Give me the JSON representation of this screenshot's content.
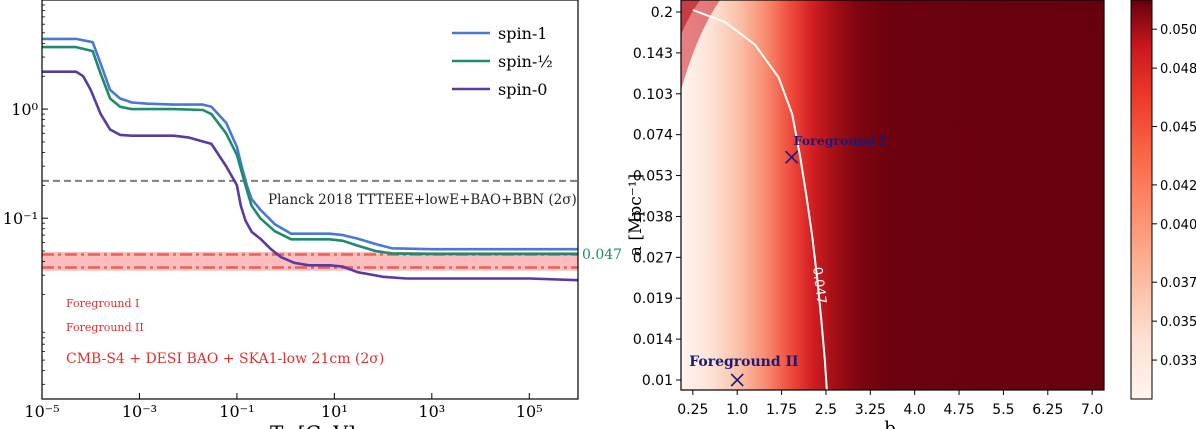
{
  "chart_data": [
    {
      "type": "line",
      "xscale": "log",
      "yscale": "log",
      "xlim": [
        1e-05,
        1000000.0
      ],
      "ylim": [
        0.0022,
        10
      ],
      "xticks": [
        {
          "v": 1e-05,
          "label": "10⁻⁵"
        },
        {
          "v": 0.001,
          "label": "10⁻³"
        },
        {
          "v": 0.1,
          "label": "10⁻¹"
        },
        {
          "v": 10.0,
          "label": "10¹"
        },
        {
          "v": 1000.0,
          "label": "10³"
        },
        {
          "v": 100000.0,
          "label": "10⁵"
        }
      ],
      "yticks": [
        {
          "v": 1,
          "label": "10⁰"
        },
        {
          "v": 0.1,
          "label": "10⁻¹"
        }
      ],
      "xlabel_partial": "T₀ [GeV]",
      "series": [
        {
          "name": "spin-1",
          "color": "#4a78d6",
          "x": [
            1e-05,
            5e-05,
            0.00011,
            0.00016,
            0.00025,
            0.0004,
            0.0007,
            0.0015,
            0.005,
            0.02,
            0.03,
            0.06,
            0.1,
            0.13,
            0.16,
            0.2,
            0.3,
            0.6,
            1.3,
            3,
            8,
            15,
            30,
            70,
            150,
            1000.0,
            10000.0,
            1000000.0
          ],
          "y": [
            4.4,
            4.4,
            4.1,
            2.6,
            1.5,
            1.25,
            1.15,
            1.12,
            1.1,
            1.1,
            1.05,
            0.75,
            0.45,
            0.28,
            0.2,
            0.15,
            0.12,
            0.088,
            0.072,
            0.072,
            0.072,
            0.07,
            0.065,
            0.058,
            0.053,
            0.052,
            0.052,
            0.052
          ]
        },
        {
          "name": "spin-1/2",
          "color": "#1e8a6e",
          "x": [
            1e-05,
            5e-05,
            0.00011,
            0.00016,
            0.00025,
            0.0004,
            0.0007,
            0.0015,
            0.005,
            0.02,
            0.03,
            0.06,
            0.1,
            0.13,
            0.16,
            0.2,
            0.3,
            0.6,
            1.3,
            3,
            8,
            15,
            30,
            70,
            150,
            1000.0,
            10000.0,
            1000000.0
          ],
          "y": [
            3.7,
            3.7,
            3.4,
            2.1,
            1.25,
            1.05,
            1.0,
            1.0,
            1.0,
            0.98,
            0.9,
            0.6,
            0.38,
            0.25,
            0.18,
            0.13,
            0.1,
            0.076,
            0.064,
            0.064,
            0.064,
            0.062,
            0.056,
            0.05,
            0.0475,
            0.047,
            0.047,
            0.047
          ]
        },
        {
          "name": "spin-0",
          "color": "#5b3aa3",
          "x": [
            1e-05,
            3e-05,
            5e-05,
            7e-05,
            0.0001,
            0.00016,
            0.00025,
            0.0004,
            0.0007,
            0.0015,
            0.005,
            0.01,
            0.03,
            0.06,
            0.1,
            0.12,
            0.15,
            0.2,
            0.3,
            0.5,
            0.8,
            1.5,
            3,
            8,
            15,
            30,
            100,
            300,
            1000.0,
            10000.0,
            100000.0,
            1000000.0
          ],
          "y": [
            2.2,
            2.2,
            2.2,
            2.0,
            1.5,
            0.9,
            0.65,
            0.58,
            0.57,
            0.57,
            0.57,
            0.55,
            0.48,
            0.3,
            0.2,
            0.13,
            0.095,
            0.075,
            0.065,
            0.052,
            0.044,
            0.039,
            0.037,
            0.037,
            0.036,
            0.032,
            0.029,
            0.028,
            0.028,
            0.028,
            0.028,
            0.027
          ]
        }
      ],
      "legend": {
        "placement": "top-right",
        "labels": [
          "spin-1",
          "spin-½",
          "spin-0"
        ]
      },
      "hlines": [
        {
          "label": "Planck 2018 TTTEEE+lowE+BAO+BBN (2σ)",
          "y": 0.22,
          "style": "dashed",
          "color": "#7f7f7f"
        }
      ],
      "band": {
        "label": "CMB-S4 + DESI BAO + SKA1-low 21cm (2σ)",
        "ymin": 0.033,
        "ymax": 0.049,
        "color": "#f8b0b0"
      },
      "foreground_lines": [
        {
          "label": "Foreground I",
          "y": 0.0465
        },
        {
          "label": "Foreground II",
          "y": 0.0353
        }
      ],
      "annotation": {
        "text": "0.047",
        "y": 0.047,
        "color": "#1e8a6e"
      }
    },
    {
      "type": "heatmap",
      "title": "",
      "xlabel": "b",
      "ylabel": "a [Mpc⁻¹]",
      "x_tick_labels": [
        "0.25",
        "1.0",
        "1.75",
        "2.5",
        "3.25",
        "4.0",
        "4.75",
        "5.5",
        "6.25",
        "7.0"
      ],
      "y_tick_labels": [
        "0.2",
        "0.143",
        "0.103",
        "0.074",
        "0.053",
        "0.038",
        "0.027",
        "0.019",
        "0.014",
        "0.01"
      ],
      "xlim": [
        0.05,
        7.2
      ],
      "colormap": "Reds",
      "colorbar": {
        "min": 0.031,
        "max": 0.0515,
        "ticks": [
          "0.033",
          "0.035",
          "0.037",
          "0.040",
          "0.042",
          "0.045",
          "0.048",
          "0.050"
        ],
        "tick_values": [
          0.033,
          0.035,
          0.037,
          0.04,
          0.042,
          0.045,
          0.048,
          0.05
        ]
      },
      "contour": {
        "label": "0.047",
        "level": 0.047,
        "points": [
          [
            0.25,
            9.05
          ],
          [
            0.8,
            8.75
          ],
          [
            1.3,
            8.2
          ],
          [
            1.7,
            7.4
          ],
          [
            1.93,
            6.5
          ],
          [
            2.06,
            5.5
          ],
          [
            2.17,
            4.5
          ],
          [
            2.27,
            3.5
          ],
          [
            2.35,
            2.5
          ],
          [
            2.42,
            1.5
          ],
          [
            2.48,
            0.5
          ],
          [
            2.52,
            -0.35
          ]
        ]
      },
      "markers": [
        {
          "label": "Foreground I",
          "b": 1.92,
          "a_index": 5.45
        },
        {
          "label": "Foreground II",
          "b": 1.0,
          "a_index": 0.0
        }
      ]
    }
  ]
}
